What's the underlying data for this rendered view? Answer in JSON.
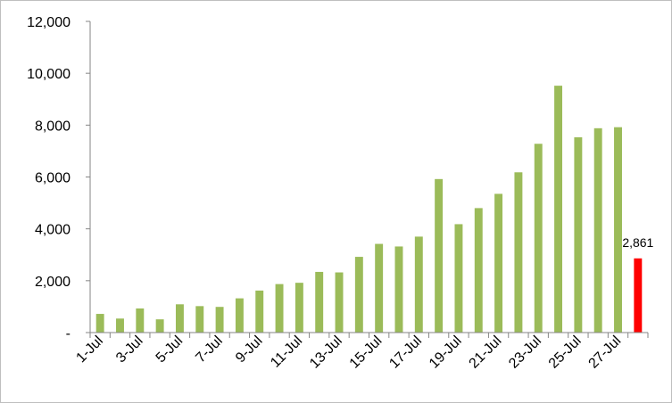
{
  "chart_data": {
    "type": "bar",
    "title": "",
    "xlabel": "",
    "ylabel": "",
    "ylim": [
      0,
      12000
    ],
    "yticks": [
      0,
      2000,
      4000,
      6000,
      8000,
      10000,
      12000
    ],
    "ytick_labels": [
      "-",
      "2,000",
      "4,000",
      "6,000",
      "8,000",
      "10,000",
      "12,000"
    ],
    "grid": false,
    "legend": "none",
    "categories": [
      "1-Jul",
      "2-Jul",
      "3-Jul",
      "4-Jul",
      "5-Jul",
      "6-Jul",
      "7-Jul",
      "8-Jul",
      "9-Jul",
      "10-Jul",
      "11-Jul",
      "12-Jul",
      "13-Jul",
      "14-Jul",
      "15-Jul",
      "16-Jul",
      "17-Jul",
      "18-Jul",
      "19-Jul",
      "20-Jul",
      "21-Jul",
      "22-Jul",
      "23-Jul",
      "24-Jul",
      "25-Jul",
      "26-Jul",
      "27-Jul",
      "28-Jul"
    ],
    "shown_x_labels": [
      "1-Jul",
      "3-Jul",
      "5-Jul",
      "7-Jul",
      "9-Jul",
      "11-Jul",
      "13-Jul",
      "15-Jul",
      "17-Jul",
      "19-Jul",
      "21-Jul",
      "23-Jul",
      "25-Jul",
      "27-Jul"
    ],
    "values": [
      720,
      540,
      930,
      510,
      1090,
      1020,
      990,
      1320,
      1620,
      1870,
      1920,
      2340,
      2320,
      2920,
      3420,
      3320,
      3700,
      5920,
      4180,
      4800,
      5350,
      6180,
      7280,
      9520,
      7530,
      7880,
      7920,
      2861
    ],
    "colors": {
      "default": "#9bbb59",
      "highlight": "#ff0000"
    },
    "highlight_index": 27,
    "data_labels": [
      {
        "index": 27,
        "text": "2,861"
      }
    ]
  }
}
